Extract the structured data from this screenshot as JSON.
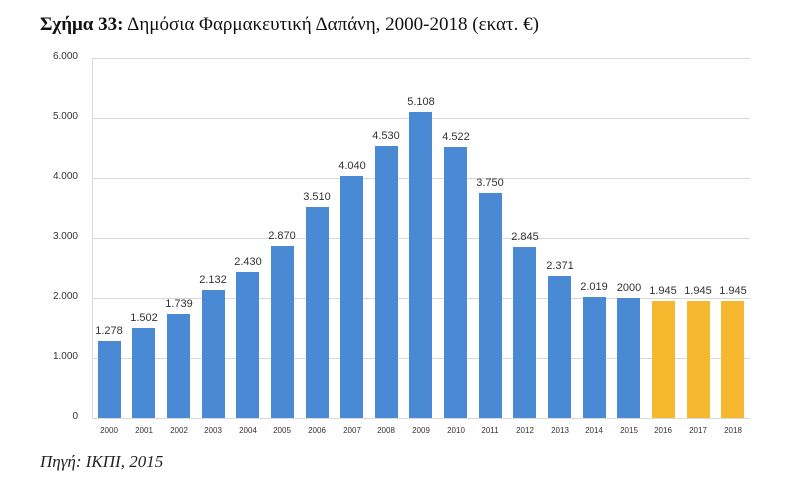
{
  "figure": {
    "title_bold": "Σχήμα 33:",
    "title_rest": " Δημόσια Φαρμακευτική Δαπάνη, 2000-2018 (εκατ. €)",
    "source": "Πηγή: ΙΚΠΙ, 2015"
  },
  "colors": {
    "actual": "#4a8ad4",
    "projected": "#f5b82e",
    "grid": "#d9d9d9"
  },
  "chart_data": {
    "type": "bar",
    "title": "Σχήμα 33: Δημόσια Φαρμακευτική Δαπάνη, 2000-2018 (εκατ. €)",
    "xlabel": "",
    "ylabel": "",
    "ylim": [
      0,
      6000
    ],
    "yticks": [
      0,
      1000,
      2000,
      3000,
      4000,
      5000,
      6000
    ],
    "ytick_labels": [
      "0",
      "1.000",
      "2.000",
      "3.000",
      "4.000",
      "5.000",
      "6.000"
    ],
    "grid": true,
    "legend": null,
    "categories": [
      "2000",
      "2001",
      "2002",
      "2003",
      "2004",
      "2005",
      "2006",
      "2007",
      "2008",
      "2009",
      "2010",
      "2011",
      "2012",
      "2013",
      "2014",
      "2015",
      "2016",
      "2017",
      "2018"
    ],
    "values": [
      1278,
      1502,
      1739,
      2132,
      2430,
      2870,
      3510,
      4040,
      4530,
      5108,
      4522,
      3750,
      2845,
      2371,
      2019,
      2000,
      1945,
      1945,
      1945
    ],
    "data_labels": [
      "1.278",
      "1.502",
      "1.739",
      "2.132",
      "2.430",
      "2.870",
      "3.510",
      "4.040",
      "4.530",
      "5.108",
      "4.522",
      "3.750",
      "2.845",
      "2.371",
      "2.019",
      "2000",
      "1.945",
      "1.945",
      "1.945"
    ],
    "bar_kind": [
      "actual",
      "actual",
      "actual",
      "actual",
      "actual",
      "actual",
      "actual",
      "actual",
      "actual",
      "actual",
      "actual",
      "actual",
      "actual",
      "actual",
      "actual",
      "actual",
      "projected",
      "projected",
      "projected"
    ],
    "annotations": [
      "Bars 2016-2018 shown in yellow (projection)"
    ],
    "source": "Πηγή: ΙΚΠΙ, 2015"
  }
}
